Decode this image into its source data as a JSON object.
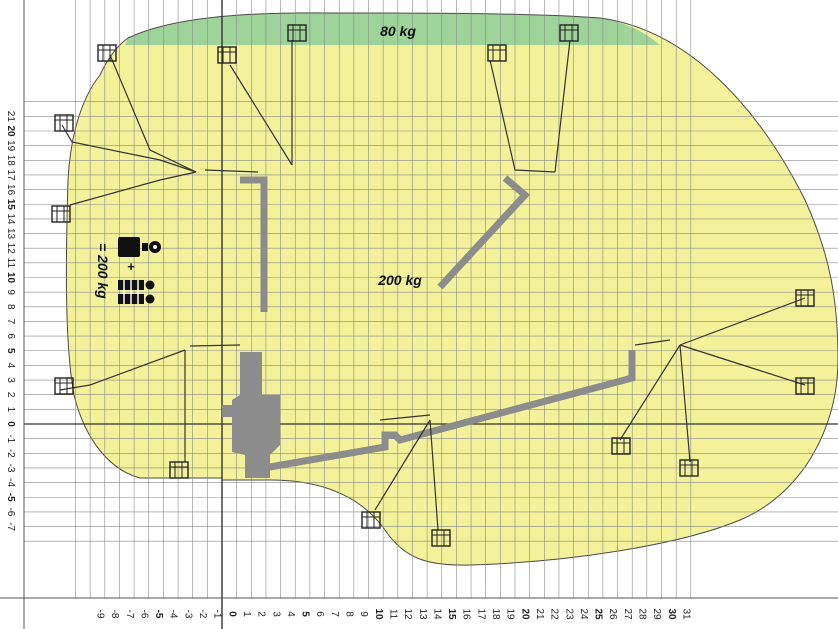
{
  "colors": {
    "grid": "#8a8a8a",
    "zone_main": "#f3f199",
    "zone_top": "#9ed39a",
    "boom": "#8c8c8c",
    "outline": "#4a4a4a",
    "text": "#111111"
  },
  "zones": {
    "top_label": "80 kg",
    "main_label": "200 kg"
  },
  "legend": {
    "plus": "+",
    "capacity": "= 200 kg",
    "icons": [
      "payload-box-icon",
      "two-persons-icon"
    ]
  },
  "y_axis_ticks": [
    "21",
    "20",
    "19",
    "18",
    "17",
    "16",
    "15",
    "14",
    "13",
    "12",
    "11",
    "10",
    "9",
    "8",
    "7",
    "6",
    "5",
    "4",
    "3",
    "2",
    "1",
    "0",
    "-1",
    "-2",
    "-3",
    "-4",
    "-5",
    "-6",
    "-7"
  ],
  "x_axis_ticks": [
    "-9",
    "-8",
    "-7",
    "-6",
    "-5",
    "-4",
    "-3",
    "-2",
    "-1",
    "0",
    "1",
    "2",
    "3",
    "4",
    "5",
    "6",
    "7",
    "8",
    "9",
    "10",
    "11",
    "12",
    "13",
    "14",
    "15",
    "16",
    "17",
    "18",
    "19",
    "20",
    "21",
    "22",
    "23",
    "24",
    "25",
    "26",
    "27",
    "28",
    "29",
    "30",
    "31"
  ],
  "bold_ticks": [
    "20",
    "15",
    "10",
    "5",
    "0",
    "-5",
    "25",
    "30"
  ]
}
